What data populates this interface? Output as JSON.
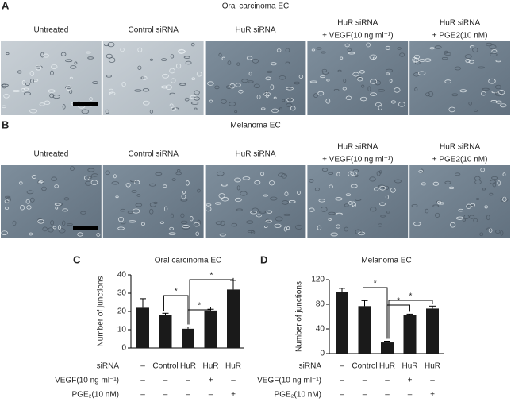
{
  "panels": [
    {
      "label": "A",
      "title": "Oral carcinoma EC",
      "columns": [
        [
          "Untreated"
        ],
        [
          "Control siRNA"
        ],
        [
          "HuR siRNA"
        ],
        [
          "HuR siRNA",
          "+ VEGF(10 ng ml⁻¹)"
        ],
        [
          "HuR siRNA",
          "+ PGE2(10 nM)"
        ]
      ]
    },
    {
      "label": "B",
      "title": "Melanoma EC",
      "columns": [
        [
          "Untreated"
        ],
        [
          "Control siRNA"
        ],
        [
          "HuR siRNA"
        ],
        [
          "HuR siRNA",
          "+ VEGF(10 ng ml⁻¹)"
        ],
        [
          "HuR siRNA",
          "+ PGE2(10 nM)"
        ]
      ]
    }
  ],
  "chart_data": [
    {
      "type": "bar",
      "label": "C",
      "title": "Oral carcinoma EC",
      "y_label": "Number of junctions",
      "category_label": "siRNA",
      "categories": [
        "–",
        "Control",
        "HuR",
        "HuR",
        "HuR"
      ],
      "values": [
        22,
        18,
        10.5,
        20.5,
        32
      ],
      "errors": [
        5,
        1,
        1,
        0.7,
        5
      ],
      "color": "#1a1a1a",
      "ylim": [
        0,
        40
      ],
      "yticks": [
        0,
        10,
        20,
        30,
        40
      ],
      "conditions": [
        {
          "label": "VEGF(10 ng ml⁻¹)",
          "values": [
            "–",
            "–",
            "–",
            "+",
            "–"
          ]
        },
        {
          "label": "PGE₂(10 nM)",
          "values": [
            "–",
            "–",
            "–",
            "–",
            "+"
          ]
        }
      ],
      "annotations": [
        "*",
        "*",
        "*"
      ]
    },
    {
      "type": "bar",
      "label": "D",
      "title": "Melanoma EC",
      "y_label": "Number of junctions",
      "category_label": "siRNA",
      "categories": [
        "–",
        "Control",
        "HuR",
        "HuR",
        "HuR"
      ],
      "values": [
        100,
        77,
        18,
        62,
        73
      ],
      "errors": [
        6,
        9,
        2,
        2,
        4
      ],
      "color": "#1a1a1a",
      "ylim": [
        0,
        120
      ],
      "yticks": [
        0,
        40,
        80,
        120
      ],
      "conditions": [
        {
          "label": "VEGF(10 ng ml⁻¹)",
          "values": [
            "–",
            "–",
            "–",
            "+",
            "–"
          ]
        },
        {
          "label": "PGE₂(10 nM)",
          "values": [
            "–",
            "–",
            "–",
            "–",
            "+"
          ]
        }
      ],
      "annotations": [
        "*",
        "*",
        "*"
      ]
    }
  ]
}
